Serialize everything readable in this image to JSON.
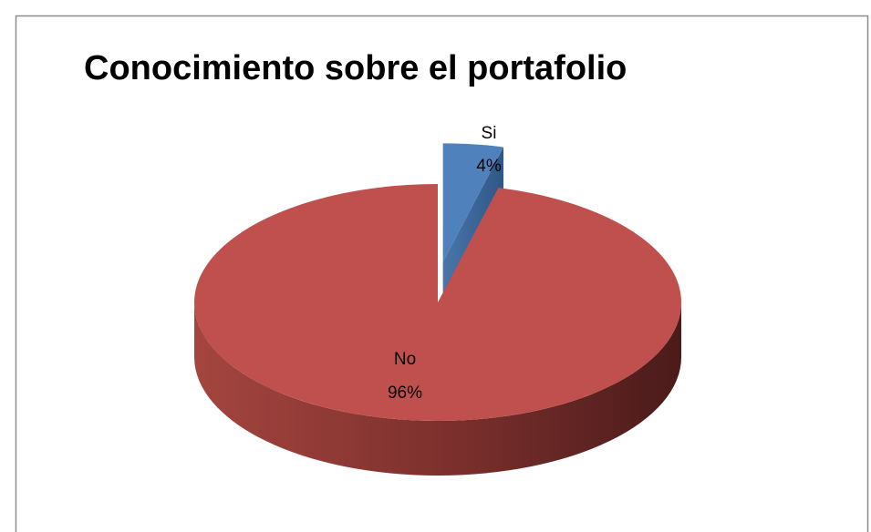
{
  "chart_data": {
    "type": "pie",
    "title": "Conocimiento sobre el portafolio",
    "categories": [
      "Si",
      "No"
    ],
    "values": [
      4,
      96
    ],
    "value_labels": [
      "4%",
      "96%"
    ],
    "colors": [
      "#4f81bd",
      "#c0504d"
    ],
    "style": "3d",
    "exploded": "Si"
  }
}
